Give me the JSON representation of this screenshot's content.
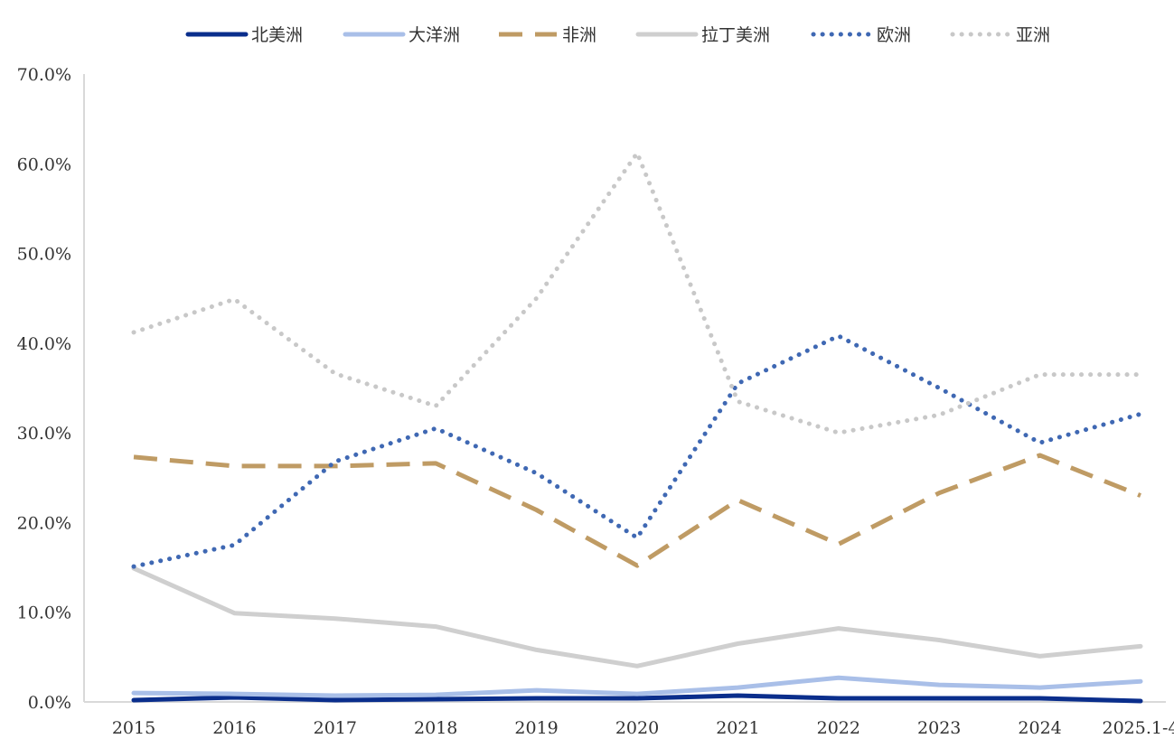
{
  "chart_data": {
    "type": "line",
    "title": "",
    "xlabel": "",
    "ylabel": "",
    "categories": [
      "2015",
      "2016",
      "2017",
      "2018",
      "2019",
      "2020",
      "2021",
      "2022",
      "2023",
      "2024",
      "2025.1-4"
    ],
    "ylim": [
      0,
      70
    ],
    "y_ticks": [
      {
        "value": 0,
        "label": "0.0%"
      },
      {
        "value": 10,
        "label": "10.0%"
      },
      {
        "value": 20,
        "label": "20.0%"
      },
      {
        "value": 30,
        "label": "30.0%"
      },
      {
        "value": 40,
        "label": "40.0%"
      },
      {
        "value": 50,
        "label": "50.0%"
      },
      {
        "value": 60,
        "label": "60.0%"
      },
      {
        "value": 70,
        "label": "70.0%"
      }
    ],
    "grid": false,
    "legend_position": "top",
    "series": [
      {
        "name": "北美洲",
        "color": "#0a2e8c",
        "style": "solid",
        "values": [
          0.2,
          0.5,
          0.2,
          0.3,
          0.4,
          0.4,
          0.7,
          0.4,
          0.4,
          0.4,
          0.1
        ]
      },
      {
        "name": "大洋洲",
        "color": "#a9bfe8",
        "style": "solid",
        "values": [
          1.0,
          0.9,
          0.7,
          0.8,
          1.3,
          0.9,
          1.6,
          2.7,
          1.9,
          1.6,
          2.3
        ]
      },
      {
        "name": "非洲",
        "color": "#bf9b64",
        "style": "dashed",
        "values": [
          27.3,
          26.3,
          26.3,
          26.6,
          21.4,
          15.2,
          22.5,
          17.6,
          23.3,
          27.5,
          23.0
        ]
      },
      {
        "name": "拉丁美洲",
        "color": "#cfcfcf",
        "style": "solid",
        "values": [
          14.9,
          9.9,
          9.3,
          8.4,
          5.8,
          4.0,
          6.5,
          8.2,
          6.9,
          5.1,
          6.2
        ]
      },
      {
        "name": "欧洲",
        "color": "#3f68b3",
        "style": "dotted",
        "values": [
          15.1,
          17.5,
          26.8,
          30.5,
          25.5,
          18.3,
          35.5,
          40.8,
          35.0,
          28.9,
          32.1
        ]
      },
      {
        "name": "亚洲",
        "color": "#c8c8c8",
        "style": "dotted",
        "values": [
          41.2,
          44.9,
          36.6,
          33.0,
          45.0,
          61.2,
          33.5,
          30.0,
          32.0,
          36.5,
          36.5
        ]
      }
    ]
  }
}
